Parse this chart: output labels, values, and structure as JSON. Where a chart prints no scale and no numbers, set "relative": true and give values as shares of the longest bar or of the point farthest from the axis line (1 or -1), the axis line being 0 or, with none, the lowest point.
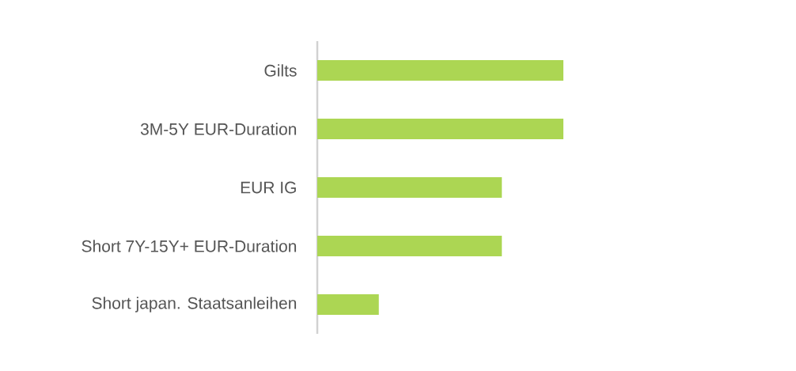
{
  "chart_data": {
    "type": "bar",
    "orientation": "horizontal",
    "relative": true,
    "color": "#acd653",
    "categories": [
      "Gilts",
      "3M-5Y EUR-Duration",
      "EUR IG",
      "Short 7Y-15Y+ EUR-Duration",
      "Short japan. Staatsanleihen"
    ],
    "values": [
      1,
      1,
      0.75,
      0.75,
      0.25
    ]
  }
}
